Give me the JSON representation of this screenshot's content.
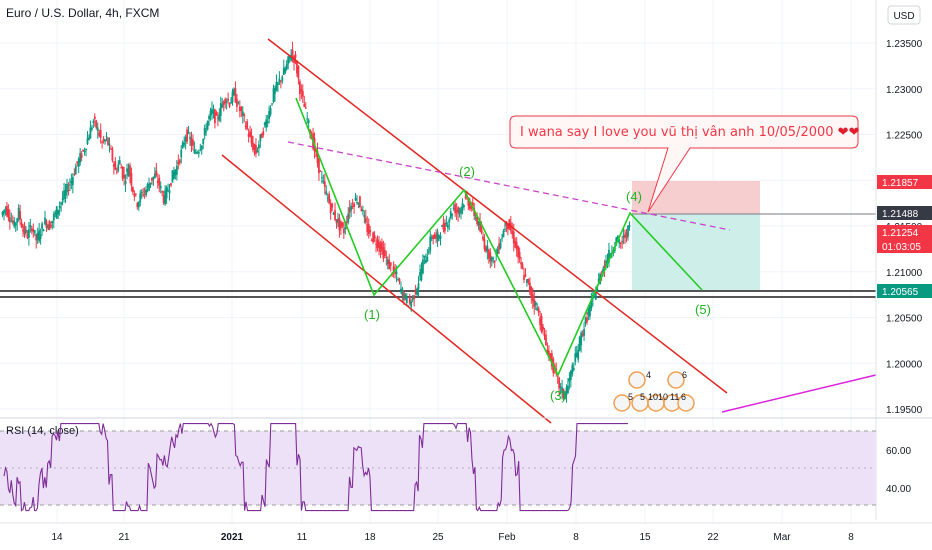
{
  "chart_data": {
    "type": "candlestick",
    "title": "Euro / U.S. Dollar, 4h, FXCM",
    "currency": "USD",
    "y_ticks": [
      "1.23500",
      "1.23000",
      "1.22500",
      "1.22000",
      "1.21500",
      "1.21000",
      "1.20500",
      "1.20000",
      "1.19500"
    ],
    "ylim": [
      1.1935,
      1.2372
    ],
    "x_ticks": [
      "14",
      "21",
      "2021",
      "11",
      "18",
      "25",
      "Feb",
      "8",
      "15",
      "22",
      "Mar",
      "8"
    ],
    "price_tags": [
      {
        "value": "1.21857",
        "color": "#f23645",
        "text_color": "#ffffff"
      },
      {
        "value": "1.21488",
        "color": "#363a45",
        "text_color": "#ffffff"
      },
      {
        "value": "1.21254",
        "color": "#f23645",
        "text_color": "#ffffff"
      },
      {
        "value": "01:03:05",
        "color": "#f23645",
        "text_color": "#ffffff"
      },
      {
        "value": "1.20565",
        "color": "#089981",
        "text_color": "#ffffff"
      }
    ],
    "wave_labels": [
      "(1)",
      "(2)",
      "(3)",
      "(4)",
      "(5)"
    ],
    "wave_points": [
      {
        "label": "(1)",
        "price": 1.2056
      },
      {
        "label": "(2)",
        "price": 1.2182
      },
      {
        "label": "(3)",
        "price": 1.196
      },
      {
        "label": "(4)",
        "price": 1.215
      },
      {
        "label": "(5)",
        "price": 1.2056
      }
    ],
    "close_series": [
      1.217,
      1.216,
      1.215,
      1.2165,
      1.2145,
      1.214,
      1.215,
      1.2135,
      1.2145,
      1.2155,
      1.215,
      1.216,
      1.217,
      1.218,
      1.219,
      1.22,
      1.2215,
      1.2225,
      1.2235,
      1.225,
      1.2265,
      1.2255,
      1.224,
      1.2245,
      1.223,
      1.221,
      1.222,
      1.22,
      1.2215,
      1.219,
      1.2175,
      1.2185,
      1.219,
      1.22,
      1.2205,
      1.2195,
      1.218,
      1.219,
      1.2205,
      1.2215,
      1.223,
      1.225,
      1.2245,
      1.223,
      1.2235,
      1.2245,
      1.2265,
      1.2275,
      1.2265,
      1.228,
      1.229,
      1.2285,
      1.2295,
      1.228,
      1.227,
      1.2255,
      1.224,
      1.223,
      1.2245,
      1.226,
      1.2275,
      1.2295,
      1.2305,
      1.2315,
      1.2325,
      1.234,
      1.233,
      1.23,
      1.228,
      1.226,
      1.224,
      1.222,
      1.22,
      1.2185,
      1.217,
      1.216,
      1.215,
      1.2145,
      1.2165,
      1.2175,
      1.218,
      1.217,
      1.215,
      1.214,
      1.2135,
      1.213,
      1.212,
      1.211,
      1.21,
      1.2095,
      1.208,
      1.207,
      1.2065,
      1.2075,
      1.209,
      1.211,
      1.212,
      1.214,
      1.2135,
      1.2145,
      1.215,
      1.216,
      1.217,
      1.2165,
      1.2175,
      1.218,
      1.217,
      1.216,
      1.2145,
      1.213,
      1.212,
      1.211,
      1.2125,
      1.214,
      1.2155,
      1.2145,
      1.213,
      1.211,
      1.2095,
      1.2085,
      1.207,
      1.206,
      1.204,
      1.202,
      1.2005,
      1.199,
      1.1975,
      1.1965,
      1.1975,
      1.1995,
      1.201,
      1.203,
      1.2045,
      1.206,
      1.2075,
      1.209,
      1.2105,
      1.2115,
      1.2125,
      1.2135,
      1.213,
      1.214,
      1.2148
    ],
    "rsi": {
      "title": "RSI (14, close)",
      "y_ticks": [
        "60.00",
        "40.00"
      ],
      "ylim": [
        25,
        75
      ],
      "band": [
        30,
        70
      ]
    }
  },
  "callout": {
    "text": "I wana say I love you vũ thị vân anh 10/05/2000",
    "hearts": "❤❤"
  },
  "events": {
    "numbers_top": [
      "4",
      "6"
    ],
    "numbers_bottom": [
      "5",
      "5",
      "10",
      "10",
      "11",
      "6"
    ]
  },
  "colors": {
    "up": "#089981",
    "down": "#f23645",
    "channel": "#e52520",
    "wave": "#22cc22",
    "trend_dash": "#cc44cc",
    "rsi_line": "#7e2d98",
    "rsi_band": "#ede1f7"
  }
}
